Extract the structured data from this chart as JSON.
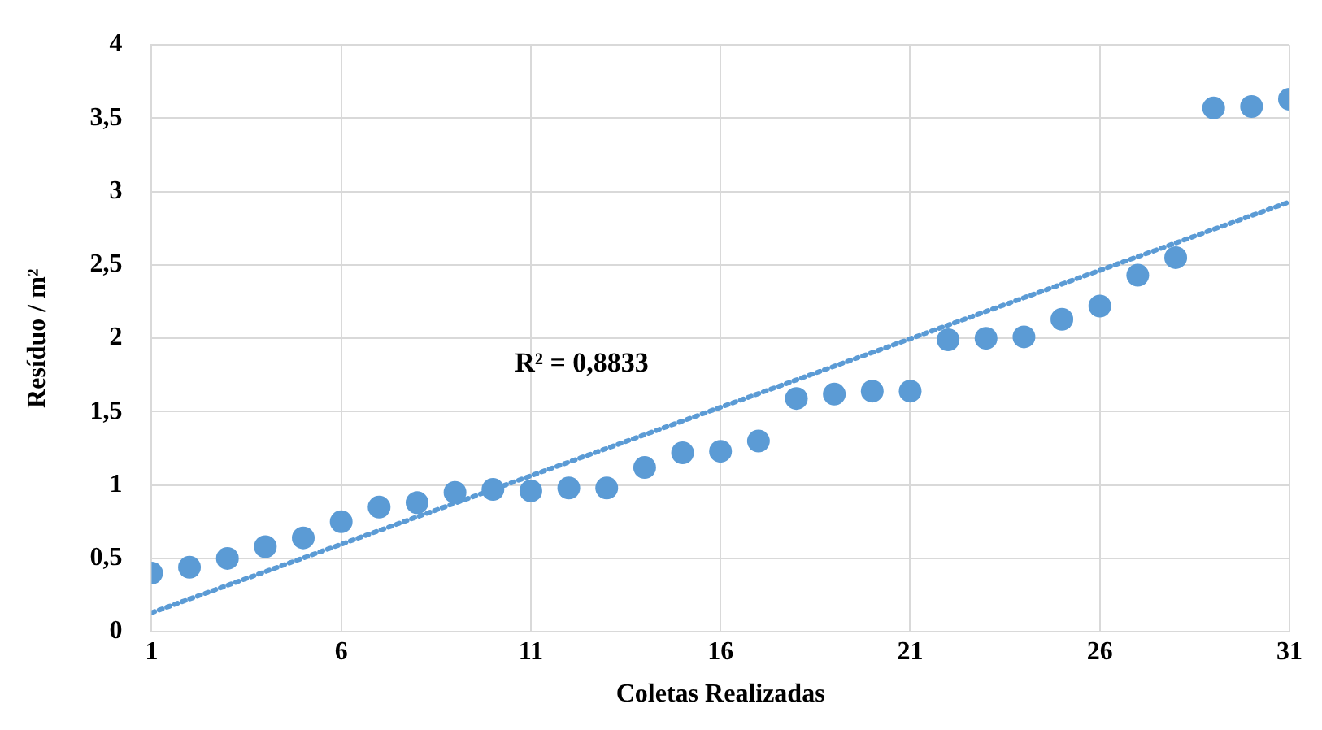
{
  "chart_data": {
    "type": "scatter",
    "xlabel": "Coletas Realizadas",
    "ylabel": "Resíduo / m²",
    "x": [
      1,
      2,
      3,
      4,
      5,
      6,
      7,
      8,
      9,
      10,
      11,
      12,
      13,
      14,
      15,
      16,
      17,
      18,
      19,
      20,
      21,
      22,
      23,
      24,
      25,
      26,
      27,
      28,
      29,
      30,
      31
    ],
    "series": [
      {
        "color": "#5b9bd5",
        "marker": "circle",
        "values": [
          0.4,
          0.44,
          0.5,
          0.58,
          0.64,
          0.75,
          0.85,
          0.88,
          0.95,
          0.97,
          0.96,
          0.98,
          0.98,
          1.12,
          1.22,
          1.23,
          1.3,
          1.59,
          1.62,
          1.64,
          1.64,
          1.99,
          2.0,
          2.01,
          2.13,
          2.22,
          2.43,
          2.55,
          3.57,
          3.58,
          3.63
        ]
      },
      {
        "type": "line",
        "color": "#5b9bd5",
        "marker": "none",
        "line_style": "dotted",
        "x": [
          1,
          31
        ],
        "values": [
          0.13,
          2.93
        ]
      }
    ],
    "xlim": [
      1,
      31
    ],
    "xticks": [
      1,
      6,
      11,
      16,
      21,
      26,
      31
    ],
    "ylim": [
      0,
      4
    ],
    "yticks": [
      {
        "value": 0,
        "label": "0"
      },
      {
        "value": 0.5,
        "label": "0,5"
      },
      {
        "value": 1,
        "label": "1"
      },
      {
        "value": 1.5,
        "label": "1,5"
      },
      {
        "value": 2,
        "label": "2"
      },
      {
        "value": 2.5,
        "label": "2,5"
      },
      {
        "value": 3,
        "label": "3"
      },
      {
        "value": 3.5,
        "label": "3,5"
      },
      {
        "value": 4,
        "label": "4"
      }
    ],
    "grid": true,
    "legend": false,
    "annotations": [
      "R² = 0,8833"
    ]
  }
}
